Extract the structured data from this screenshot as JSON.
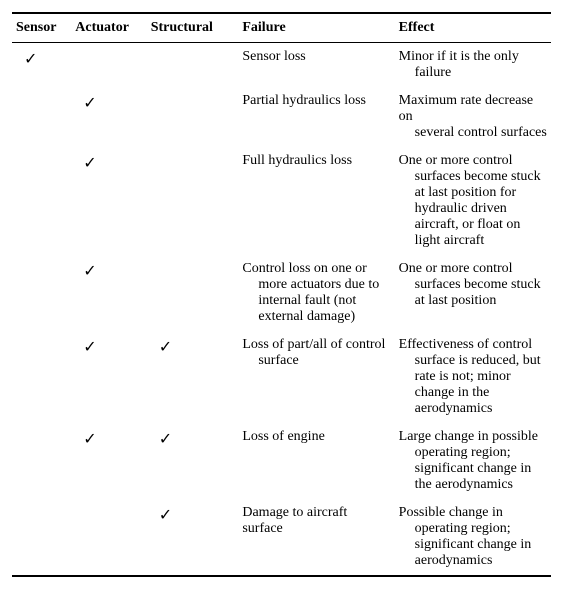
{
  "check_symbol": "✓",
  "columns": [
    "Sensor",
    "Actuator",
    "Structural",
    "Failure",
    "Effect"
  ],
  "rows": [
    {
      "sensor": true,
      "actuator": false,
      "structural": false,
      "failure": "Sensor loss",
      "failure_wrap": "",
      "effect": "Minor if it is the only",
      "effect_wrap": "failure"
    },
    {
      "sensor": false,
      "actuator": true,
      "structural": false,
      "failure": "Partial hydraulics loss",
      "failure_wrap": "",
      "effect": "Maximum rate decrease on",
      "effect_wrap": "several control surfaces"
    },
    {
      "sensor": false,
      "actuator": true,
      "structural": false,
      "failure": "Full hydraulics loss",
      "failure_wrap": "",
      "effect": "One or more control",
      "effect_wrap": "surfaces become stuck at last position for hydraulic driven aircraft, or float on light aircraft"
    },
    {
      "sensor": false,
      "actuator": true,
      "structural": false,
      "failure": "Control loss on one or",
      "failure_wrap": "more actuators due to internal fault (not external damage)",
      "effect": "One or more control",
      "effect_wrap": "surfaces become stuck at last position"
    },
    {
      "sensor": false,
      "actuator": true,
      "structural": true,
      "failure": "Loss of part/all of control",
      "failure_wrap": "surface",
      "effect": "Effectiveness of control",
      "effect_wrap": "surface is reduced, but rate is not; minor change in the aerodynamics"
    },
    {
      "sensor": false,
      "actuator": true,
      "structural": true,
      "failure": "Loss of engine",
      "failure_wrap": "",
      "effect": "Large change in possible",
      "effect_wrap": "operating region; significant change in the aerodynamics"
    },
    {
      "sensor": false,
      "actuator": false,
      "structural": true,
      "failure": "Damage to aircraft surface",
      "failure_wrap": "",
      "effect": "Possible change in",
      "effect_wrap": "operating region; significant change in aerodynamics"
    }
  ]
}
